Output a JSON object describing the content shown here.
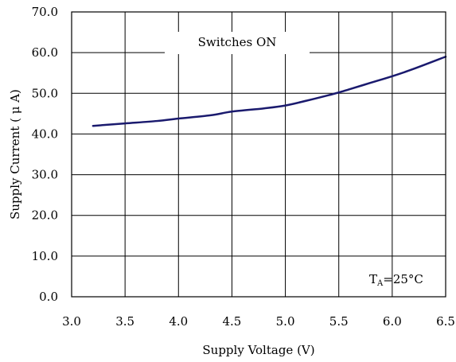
{
  "chart_data": {
    "type": "line",
    "xlabel": "Supply Voltage (V)",
    "ylabel": "Supply Current ( μ A)",
    "annotation": "Switches ON",
    "condition": {
      "main": "T",
      "sub": "A",
      "rest": "=25°C"
    },
    "xlim": [
      3.0,
      6.5
    ],
    "ylim": [
      0.0,
      70.0
    ],
    "xticks": [
      "3.0",
      "3.5",
      "4.0",
      "4.5",
      "5.0",
      "5.5",
      "6.0",
      "6.5"
    ],
    "yticks": [
      "0.0",
      "10.0",
      "20.0",
      "30.0",
      "40.0",
      "50.0",
      "60.0",
      "70.0"
    ],
    "grid": true,
    "line_color": "#1a1a6e",
    "series": [
      {
        "x": [
          3.2,
          3.5,
          3.8,
          4.0,
          4.3,
          4.5,
          4.8,
          5.0,
          5.2,
          5.4,
          5.5,
          5.6,
          5.8,
          6.0,
          6.2,
          6.5
        ],
        "y": [
          42.0,
          42.6,
          43.2,
          43.8,
          44.6,
          45.5,
          46.3,
          47.0,
          48.2,
          49.5,
          50.2,
          51.0,
          52.6,
          54.2,
          56.0,
          59.0
        ]
      }
    ]
  }
}
